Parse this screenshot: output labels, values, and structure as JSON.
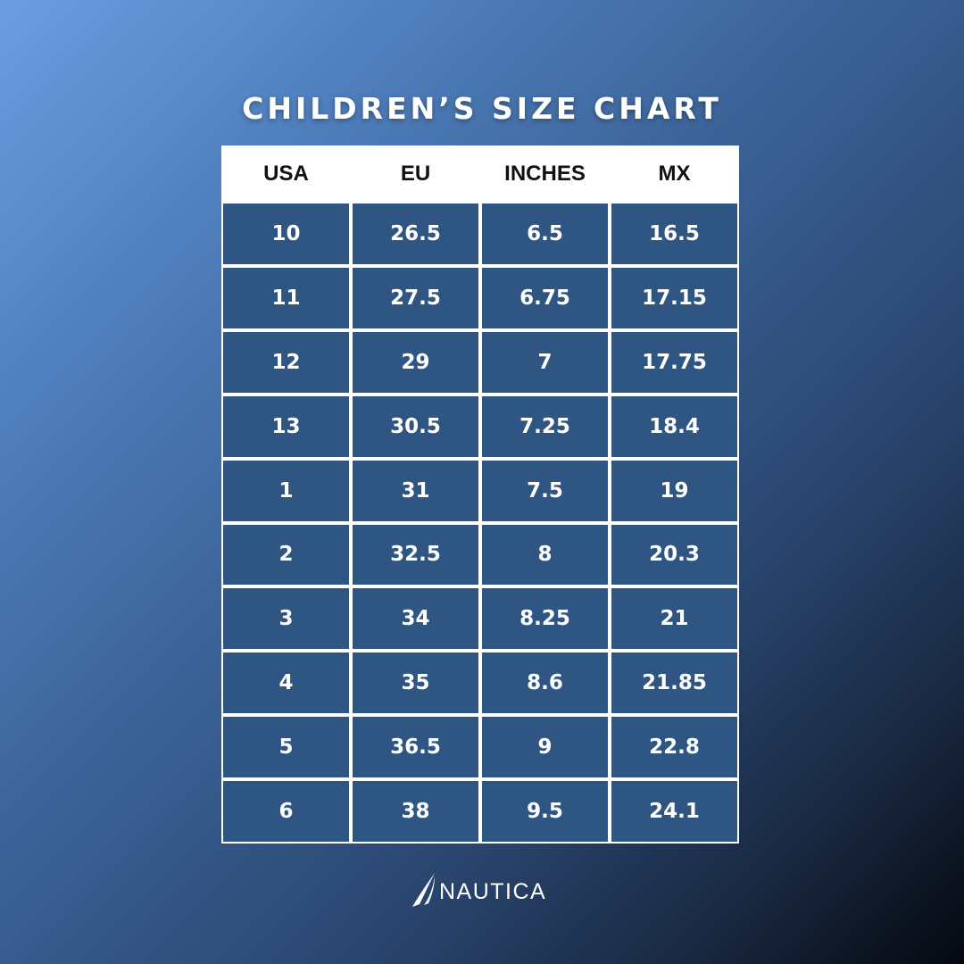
{
  "title": "CHILDREN’S SIZE CHART",
  "table": {
    "headers": [
      "USA",
      "EU",
      "INCHES",
      "MX"
    ],
    "rows": [
      [
        "10",
        "26.5",
        "6.5",
        "16.5"
      ],
      [
        "11",
        "27.5",
        "6.75",
        "17.15"
      ],
      [
        "12",
        "29",
        "7",
        "17.75"
      ],
      [
        "13",
        "30.5",
        "7.25",
        "18.4"
      ],
      [
        "1",
        "31",
        "7.5",
        "19"
      ],
      [
        "2",
        "32.5",
        "8",
        "20.3"
      ],
      [
        "3",
        "34",
        "8.25",
        "21"
      ],
      [
        "4",
        "35",
        "8.6",
        "21.85"
      ],
      [
        "5",
        "36.5",
        "9",
        "22.8"
      ],
      [
        "6",
        "38",
        "9.5",
        "24.1"
      ]
    ]
  },
  "brand": {
    "name": "NAUTICA",
    "logo_icon": "sail-icon"
  },
  "colors": {
    "background_top_left": "#6b9de0",
    "background_bottom_right": "#050810",
    "cell_fill": "#2f5583",
    "header_fill": "#ffffff",
    "grid_lines": "#ffffff",
    "text_light": "#ffffff",
    "text_dark": "#111111"
  }
}
